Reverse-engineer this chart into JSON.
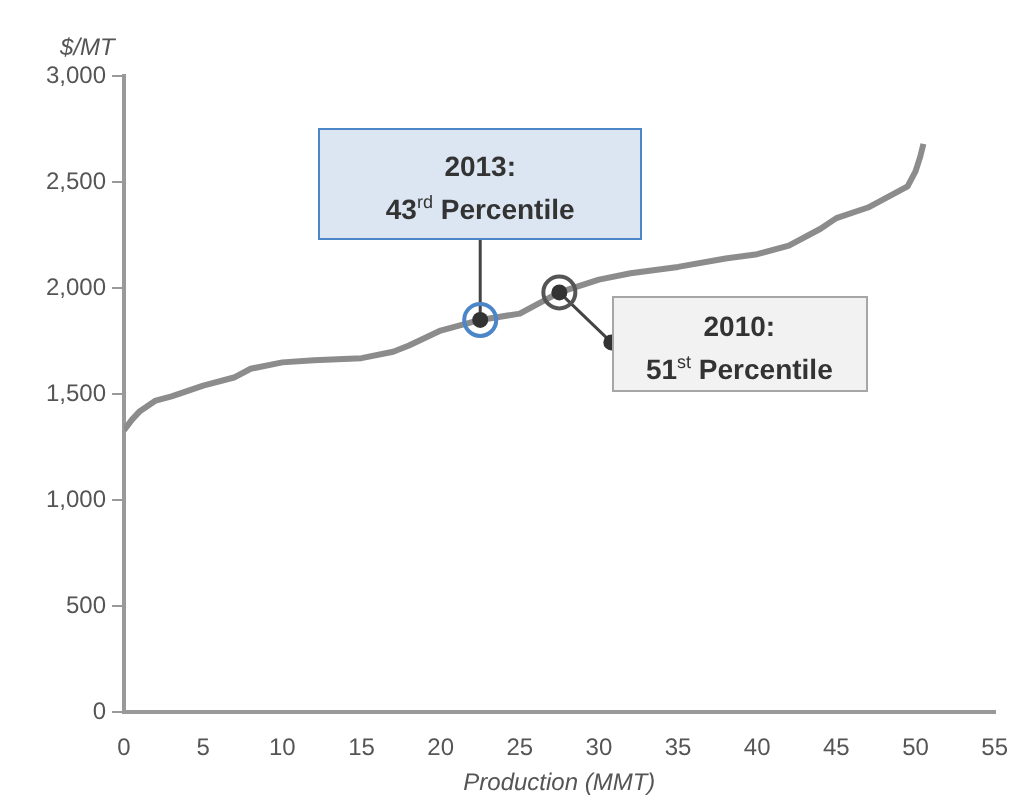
{
  "chart_data": {
    "type": "line",
    "ylabel": "$/MT",
    "xlabel": "Production (MMT)",
    "series": [
      {
        "color": "#8c8c8c",
        "x": [
          0,
          0.5,
          1,
          2,
          3,
          5,
          7,
          8,
          10,
          12,
          15,
          17,
          18,
          20,
          22.5,
          25,
          27.5,
          30,
          32,
          35,
          38,
          40,
          42,
          44,
          45,
          47,
          48,
          49.5,
          50,
          50.3,
          50.5
        ],
        "values": [
          1330,
          1380,
          1420,
          1470,
          1490,
          1540,
          1580,
          1620,
          1650,
          1660,
          1670,
          1700,
          1730,
          1800,
          1850,
          1880,
          1980,
          2040,
          2070,
          2100,
          2140,
          2160,
          2200,
          2280,
          2330,
          2380,
          2420,
          2480,
          2550,
          2620,
          2680
        ]
      }
    ],
    "xlim": [
      0,
      55
    ],
    "xticks": [
      0,
      5,
      10,
      15,
      20,
      25,
      30,
      35,
      40,
      45,
      50,
      55
    ],
    "ylim": [
      0,
      3000
    ],
    "yticks": [
      {
        "value": 0,
        "label": "0"
      },
      {
        "value": 500,
        "label": "500"
      },
      {
        "value": 1000,
        "label": "1,000"
      },
      {
        "value": 1500,
        "label": "1,500"
      },
      {
        "value": 2000,
        "label": "2,000"
      },
      {
        "value": 2500,
        "label": "2,500"
      },
      {
        "value": 3000,
        "label": "3,000"
      }
    ],
    "grid": false,
    "legend": false,
    "marker": "none",
    "line_style": "solid",
    "annotations": [
      {
        "text": "2013:\n43$^{rd}$ Percentile",
        "x": 22.5,
        "y": 1850
      },
      {
        "text": "2010:\n51$^{st}$ Percentile",
        "x": 27.5,
        "y": 1980
      }
    ]
  }
}
